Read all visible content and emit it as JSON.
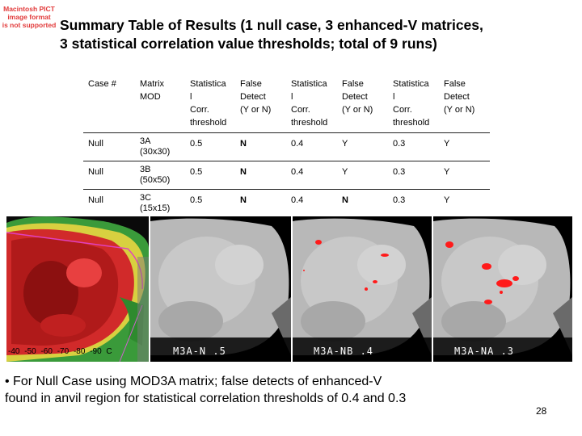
{
  "pict_warning": [
    "Macintosh PICT",
    "image format",
    "is not supported"
  ],
  "title": {
    "line1": "Summary Table of Results (1 null case, 3 enhanced-V matrices,",
    "line2": "3 statistical correlation value thresholds; total of 9 runs)"
  },
  "table": {
    "headers": [
      [
        "Case #"
      ],
      [
        "Matrix",
        "MOD"
      ],
      [
        "Statistica",
        "l",
        "Corr.",
        "threshold"
      ],
      [
        "False",
        "Detect",
        "(Y or N)"
      ],
      [
        "Statistica",
        "l",
        "Corr.",
        "threshold"
      ],
      [
        "False",
        "Detect",
        "(Y or N)"
      ],
      [
        "Statistica",
        "l",
        "Corr.",
        "threshold"
      ],
      [
        "False",
        "Detect",
        "(Y or N)"
      ]
    ],
    "rows": [
      [
        "Null",
        "3A",
        "(30x30)",
        "0.5",
        "N",
        "0.4",
        "Y",
        "0.3",
        "Y"
      ],
      [
        "Null",
        "3B",
        "(50x50)",
        "0.5",
        "N",
        "0.4",
        "Y",
        "0.3",
        "Y"
      ],
      [
        "Null",
        "3C",
        "(15x15)",
        "0.5",
        "N",
        "0.4",
        "N",
        "0.3",
        "Y"
      ]
    ]
  },
  "colorbar_labels": [
    "-40",
    "-50",
    "-60",
    "-70",
    "-80",
    "-90",
    "C"
  ],
  "image_labels": [
    "M3A-N  .5",
    "M3A-NB  .4",
    "M3A-NA  .3"
  ],
  "bullet": {
    "line1": "• For Null Case using MOD3A matrix; false detects of enhanced-V",
    "line2": "found in anvil region for statistical correlation thresholds of 0.4 and 0.3"
  },
  "page_number": "28",
  "colors": {
    "warning": "#e23b3b",
    "detect_red": "#ff1a1a",
    "image_background": "#000000"
  }
}
